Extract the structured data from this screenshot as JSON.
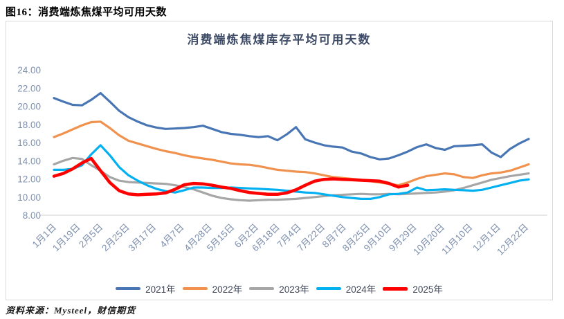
{
  "figure": {
    "caption": "图16：消费端炼焦煤平均可用天数",
    "source": "资料来源：Mysteel，财信期货"
  },
  "chart_data": {
    "type": "line",
    "title": "消费端炼焦煤库存平均可用天数",
    "ylim": [
      8,
      24
    ],
    "y_ticks": [
      "24.00",
      "22.00",
      "20.00",
      "18.00",
      "16.00",
      "14.00",
      "12.00",
      "10.00",
      "8.00"
    ],
    "grid": false,
    "legend_position": "bottom",
    "axis_label_color": "#7e90ae",
    "x_tick_labels": [
      "1月1日",
      "1月19日",
      "2月5日",
      "2月25日",
      "3月17日",
      "4月7日",
      "4月28日",
      "5月15日",
      "6月2日",
      "6月18日",
      "7月4日",
      "7月22日",
      "8月7日",
      "8月25日",
      "9月10日",
      "9月29日",
      "10月20日",
      "11月10日",
      "12月1日",
      "12月22日"
    ],
    "x_tick_weeks": [
      0,
      2.57,
      5.0,
      7.86,
      10.71,
      13.71,
      16.71,
      19.14,
      21.71,
      24.0,
      26.29,
      28.86,
      31.14,
      33.71,
      36.0,
      38.71,
      41.71,
      44.71,
      47.71,
      50.71
    ],
    "x_range_weeks": [
      0,
      51
    ],
    "series": [
      {
        "name": "2021年",
        "color": "#4876b4",
        "width": 3.2,
        "values": [
          20.9,
          20.5,
          20.15,
          20.1,
          20.7,
          21.45,
          20.5,
          19.5,
          18.8,
          18.3,
          17.9,
          17.65,
          17.5,
          17.55,
          17.6,
          17.7,
          17.85,
          17.5,
          17.15,
          16.95,
          16.85,
          16.7,
          16.6,
          16.7,
          16.25,
          16.9,
          17.7,
          16.35,
          16.0,
          15.7,
          15.55,
          15.45,
          15.0,
          14.8,
          14.4,
          14.15,
          14.25,
          14.6,
          15.0,
          15.5,
          15.8,
          15.4,
          15.2,
          15.6,
          15.65,
          15.7,
          15.8,
          14.9,
          14.4,
          15.3,
          15.9,
          16.4
        ]
      },
      {
        "name": "2022年",
        "color": "#f0914e",
        "width": 3.2,
        "values": [
          16.6,
          17.0,
          17.45,
          17.9,
          18.25,
          18.3,
          17.6,
          16.8,
          16.2,
          15.9,
          15.6,
          15.3,
          15.05,
          14.85,
          14.6,
          14.4,
          14.25,
          14.1,
          13.9,
          13.7,
          13.6,
          13.55,
          13.4,
          13.2,
          13.0,
          12.9,
          12.8,
          12.75,
          12.6,
          12.4,
          12.2,
          12.1,
          12.0,
          11.9,
          11.75,
          11.6,
          11.45,
          11.3,
          11.6,
          12.0,
          12.3,
          12.45,
          12.6,
          12.5,
          12.2,
          12.1,
          12.4,
          12.6,
          12.7,
          12.9,
          13.25,
          13.6
        ]
      },
      {
        "name": "2023年",
        "color": "#a6a6a6",
        "width": 3.2,
        "values": [
          13.6,
          14.0,
          14.3,
          14.2,
          13.5,
          12.9,
          12.2,
          11.8,
          11.65,
          11.6,
          11.55,
          11.5,
          11.45,
          11.3,
          11.1,
          10.85,
          10.5,
          10.15,
          9.9,
          9.75,
          9.65,
          9.6,
          9.65,
          9.7,
          9.7,
          9.75,
          9.8,
          9.9,
          10.0,
          10.1,
          10.2,
          10.25,
          10.3,
          10.35,
          10.3,
          10.3,
          10.35,
          10.3,
          10.35,
          10.4,
          10.45,
          10.5,
          10.6,
          10.75,
          11.0,
          11.3,
          11.6,
          11.9,
          12.1,
          12.3,
          12.45,
          12.6
        ]
      },
      {
        "name": "2024年",
        "color": "#00b0f0",
        "width": 3.2,
        "values": [
          13.0,
          13.0,
          13.1,
          13.5,
          14.7,
          15.7,
          14.6,
          13.3,
          12.4,
          11.8,
          11.3,
          10.9,
          10.65,
          10.5,
          10.75,
          11.05,
          11.05,
          11.0,
          11.0,
          11.05,
          11.0,
          10.95,
          10.9,
          10.85,
          10.8,
          10.7,
          10.6,
          10.5,
          10.45,
          10.3,
          10.15,
          10.0,
          9.9,
          9.8,
          9.8,
          10.0,
          10.3,
          10.35,
          10.5,
          11.05,
          10.75,
          10.8,
          10.85,
          10.8,
          10.75,
          10.7,
          10.8,
          11.05,
          11.3,
          11.55,
          11.8,
          11.95
        ]
      },
      {
        "name": "2025年",
        "color": "#fe0000",
        "width": 4.5,
        "values": [
          12.3,
          12.6,
          13.1,
          13.75,
          14.25,
          12.9,
          11.6,
          10.7,
          10.35,
          10.25,
          10.3,
          10.35,
          10.45,
          10.85,
          11.35,
          11.5,
          11.45,
          11.3,
          11.1,
          10.95,
          10.7,
          10.5,
          10.4,
          10.3,
          10.3,
          10.45,
          10.8,
          11.3,
          11.75,
          11.95,
          12.0,
          11.95,
          11.9,
          11.85,
          11.8,
          11.75,
          11.5,
          11.1,
          11.3
        ]
      }
    ]
  }
}
